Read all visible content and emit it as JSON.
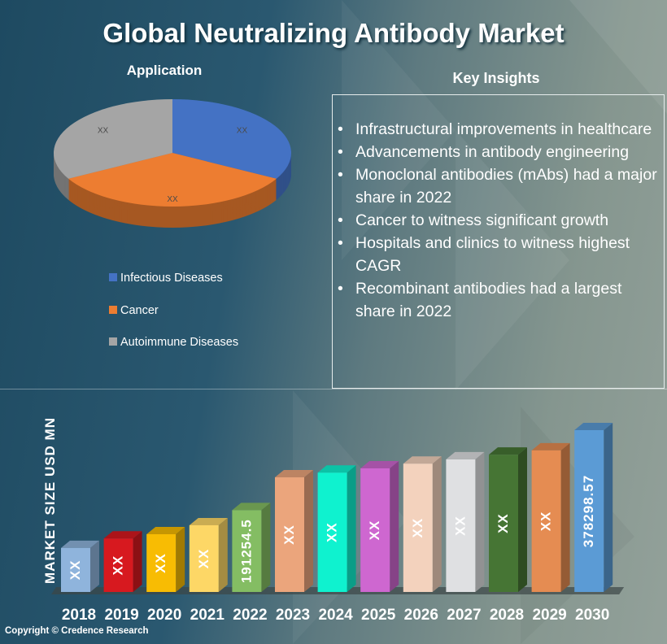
{
  "title": "Global Neutralizing Antibody Market",
  "copyright": "Copyright © Credence Research",
  "key_insights": {
    "title": "Key Insights",
    "items": [
      "Infrastructural improvements in healthcare",
      "Advancements in antibody engineering",
      "Monoclonal antibodies (mAbs) had a major share in 2022",
      "Cancer to witness significant growth",
      "Hospitals and clinics to witness highest CAGR",
      "Recombinant antibodies had a largest share in 2022"
    ]
  },
  "chart_data": [
    {
      "type": "pie",
      "title": "Application",
      "style": "3d",
      "legend_position": "bottom",
      "slices": [
        {
          "name": "Infectious Diseases",
          "share_pct": 33,
          "label": "XX",
          "color": "#4472c4"
        },
        {
          "name": "Cancer",
          "share_pct": 34,
          "label": "XX",
          "color": "#ed7d31"
        },
        {
          "name": "Autoimmune Diseases",
          "share_pct": 33,
          "label": "XX",
          "color": "#a5a5a5"
        }
      ]
    },
    {
      "type": "bar",
      "style": "3d",
      "ylabel": "MARKET SIZE USD MN",
      "categories": [
        "2018",
        "2019",
        "2020",
        "2021",
        "2022",
        "2023",
        "2024",
        "2025",
        "2026",
        "2027",
        "2028",
        "2029",
        "2030"
      ],
      "values": [
        103000,
        125000,
        135000,
        156000,
        191254.5,
        268000,
        279000,
        289000,
        300000,
        310000,
        321000,
        331000,
        378298.57
      ],
      "labels": [
        "XX",
        "XX",
        "XX",
        "XX",
        "191254.5",
        "XX",
        "XX",
        "XX",
        "XX",
        "XX",
        "XX",
        "XX",
        "378298.57"
      ],
      "colors": [
        "#8fb4dc",
        "#d7191f",
        "#f8bc03",
        "#fdd766",
        "#84bd63",
        "#eba57c",
        "#0ff2cf",
        "#ce67d0",
        "#f3d2bd",
        "#dfe0e2",
        "#467534",
        "#e58c52",
        "#5b9bd5"
      ],
      "grid": false
    }
  ]
}
